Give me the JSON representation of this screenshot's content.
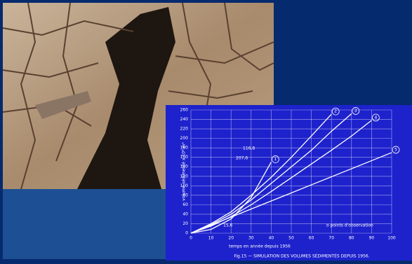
{
  "chart_data": {
    "type": "line",
    "x_label": "temps en année depuis 1956",
    "y_label": "volume sédimenté x 10⁶ m³",
    "caption": "Fig.15 — SIMULATION DES VOLUMES SÉDIMENTÉS DEPUIS 1956.",
    "legend_note": "o points d'observation",
    "annotations": [
      "207,6",
      "116,8",
      "15,6"
    ],
    "x": [
      0,
      10,
      20,
      30,
      40,
      50,
      60,
      70,
      80,
      90,
      100
    ],
    "xlim": [
      0,
      100
    ],
    "xticks": [
      0,
      10,
      20,
      30,
      40,
      50,
      60,
      70,
      80,
      90,
      100
    ],
    "ylim": [
      0,
      260
    ],
    "yticks": [
      0,
      20,
      40,
      60,
      80,
      100,
      120,
      140,
      160,
      180,
      200,
      220,
      240,
      260
    ],
    "grid": true,
    "series": [
      {
        "name": "1",
        "color": "#ffffff",
        "values": [
          0,
          8,
          30,
          75,
          150,
          null,
          null,
          null,
          null,
          null,
          null
        ]
      },
      {
        "name": "2",
        "color": "#ffffff",
        "values": [
          0,
          20,
          45,
          80,
          118,
          160,
          205,
          251,
          null,
          null,
          null
        ]
      },
      {
        "name": "3",
        "color": "#ffffff",
        "values": [
          0,
          18,
          40,
          70,
          105,
          140,
          175,
          215,
          252,
          null,
          null
        ]
      },
      {
        "name": "4",
        "color": "#ffffff",
        "values": [
          0,
          15,
          35,
          60,
          88,
          117,
          146,
          175,
          205,
          238,
          null
        ]
      },
      {
        "name": "5",
        "color": "#ffffff",
        "values": [
          0,
          17,
          34,
          51,
          68,
          85,
          102,
          119,
          136,
          153,
          170
        ]
      }
    ]
  }
}
